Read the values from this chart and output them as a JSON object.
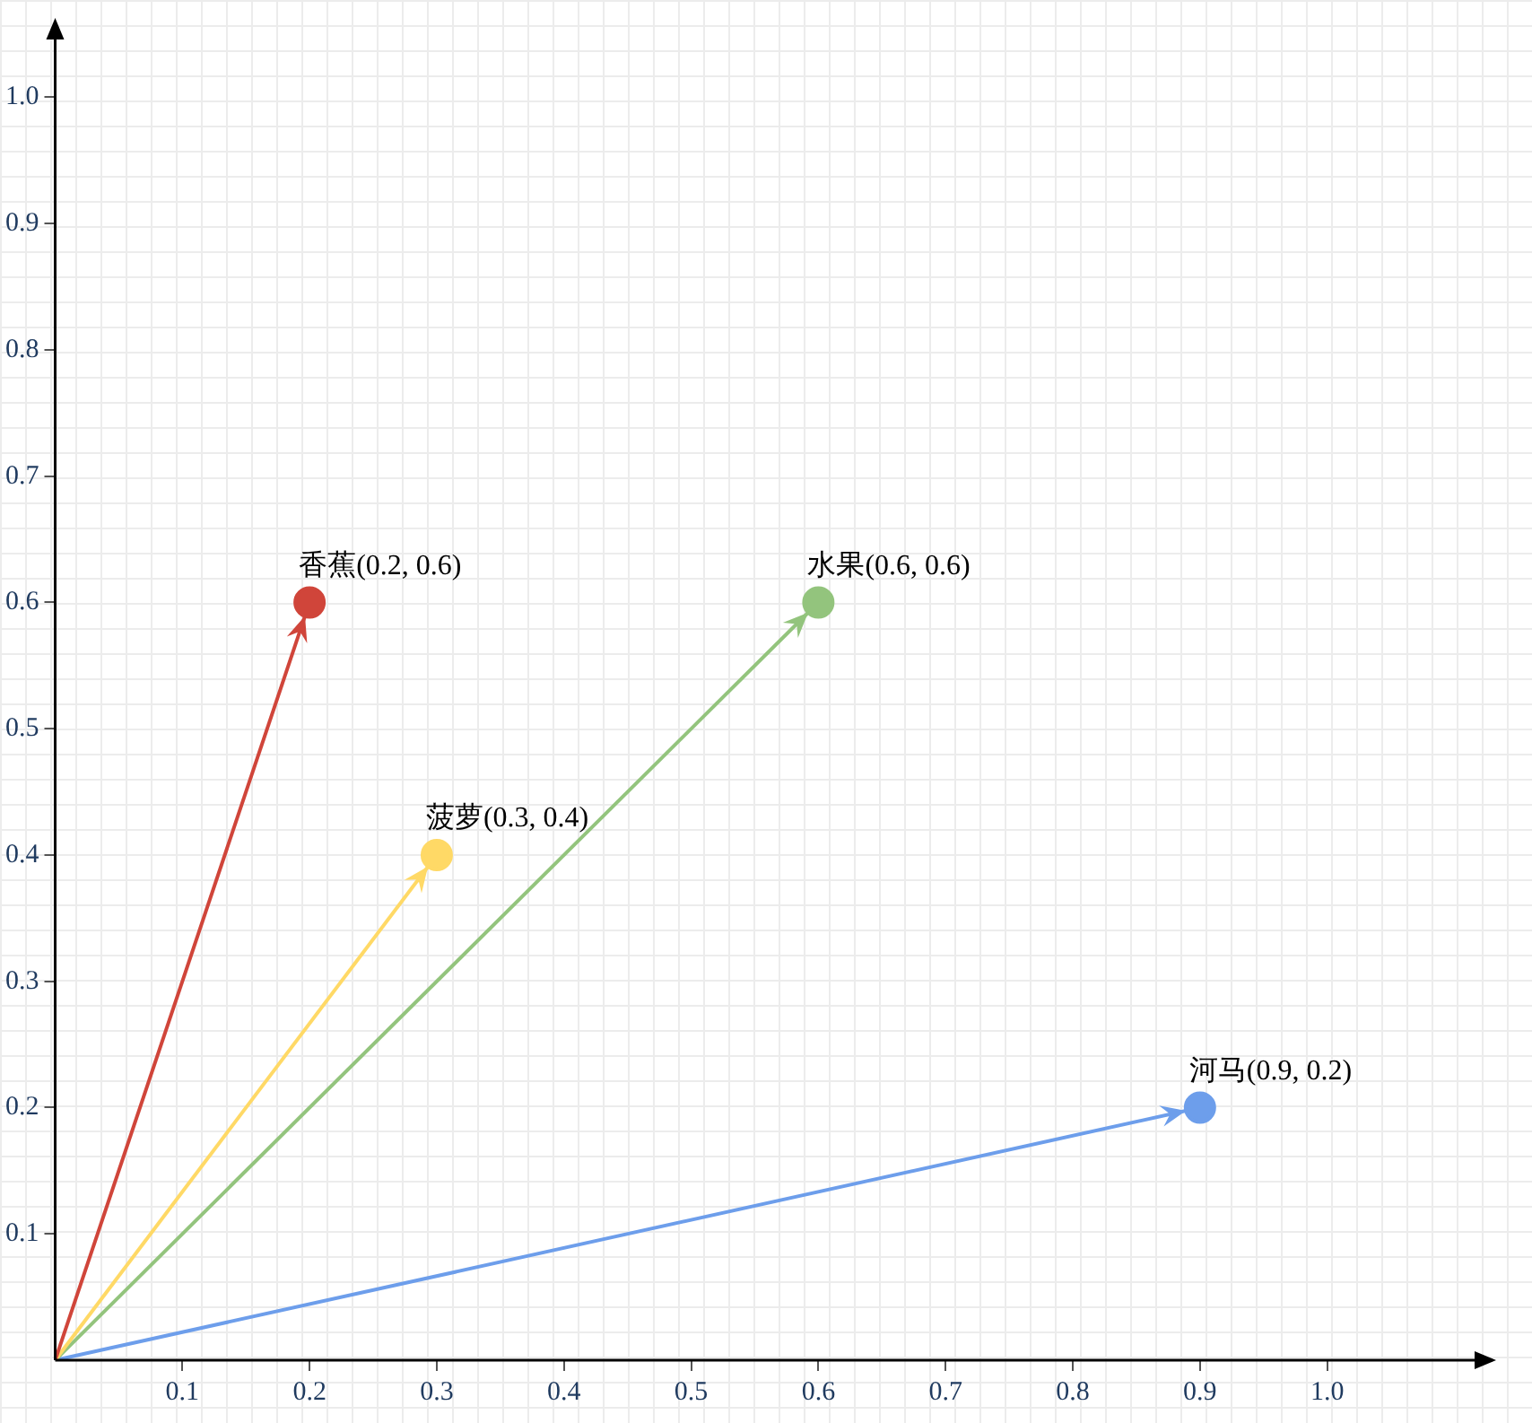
{
  "chart_data": {
    "type": "line",
    "xlim": [
      0,
      1.13
    ],
    "ylim": [
      0,
      1.06
    ],
    "xticks": [
      0.1,
      0.2,
      0.3,
      0.4,
      0.5,
      0.6,
      0.7,
      0.8,
      0.9,
      {
        "value": 1.0,
        "label": "1.0"
      }
    ],
    "yticks": [
      0.1,
      0.2,
      0.3,
      0.4,
      0.5,
      0.6,
      0.7,
      0.8,
      0.9,
      {
        "value": 1.0,
        "label": "1.0"
      }
    ],
    "legend": false,
    "marker": "circle",
    "line_style": "solid",
    "series": [
      {
        "name": "香蕉",
        "color": "#d0453a",
        "x": [
          0,
          0.2
        ],
        "values": [
          0,
          0.6
        ],
        "value_labels": [
          null,
          "(0.2, 0.6)"
        ]
      },
      {
        "name": "菠萝",
        "color": "#ffd966",
        "x": [
          0,
          0.3
        ],
        "values": [
          0,
          0.4
        ],
        "value_labels": [
          null,
          "(0.3, 0.4)"
        ]
      },
      {
        "name": "水果",
        "color": "#93c47d",
        "x": [
          0,
          0.6
        ],
        "values": [
          0,
          0.6
        ],
        "value_labels": [
          null,
          "(0.6, 0.6)"
        ]
      },
      {
        "name": "河马",
        "color": "#6d9eeb",
        "x": [
          0,
          0.9
        ],
        "values": [
          0,
          0.2
        ],
        "value_labels": [
          null,
          "(0.9, 0.2)"
        ]
      }
    ]
  }
}
